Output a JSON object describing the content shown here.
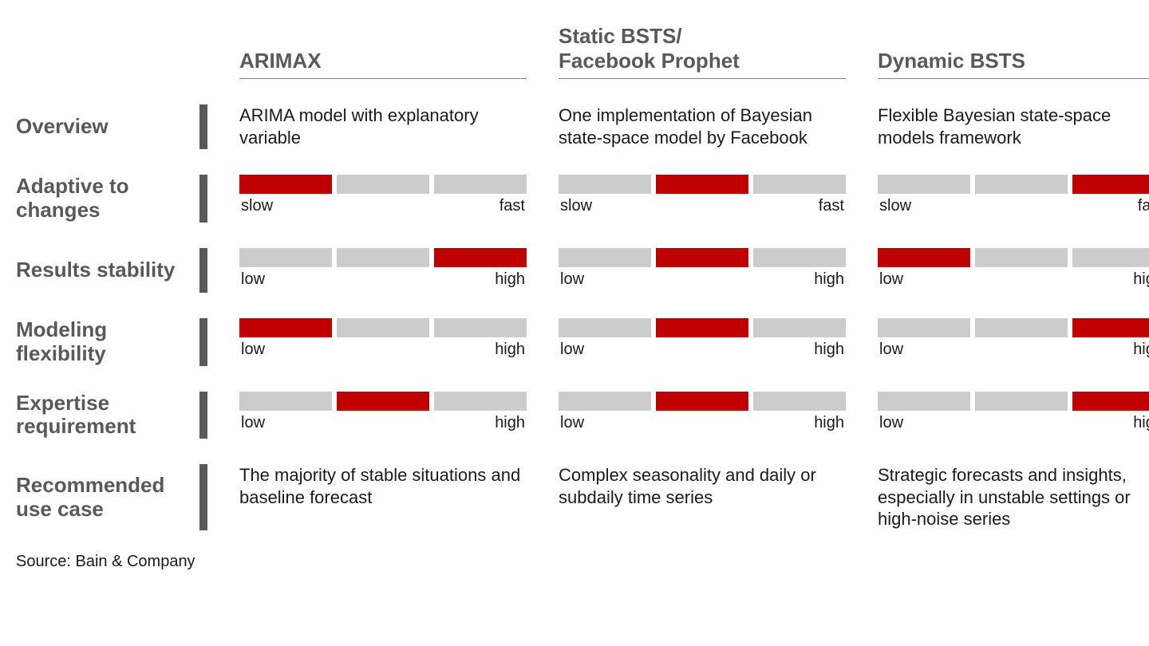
{
  "colors": {
    "active": "#c00000",
    "inactive": "#cccccc",
    "label": "#595959",
    "text": "#1a1a1a",
    "background": "#ffffff"
  },
  "segments": 3,
  "columns": [
    {
      "title": "ARIMAX"
    },
    {
      "title": "Static BSTS/\nFacebook Prophet"
    },
    {
      "title": "Dynamic BSTS"
    }
  ],
  "row_labels": {
    "overview": "Overview",
    "adaptive": "Adaptive to changes",
    "stability": "Results stability",
    "flexibility": "Modeling flexibility",
    "expertise": "Expertise requirement",
    "usecase": "Recommended use case"
  },
  "rows": {
    "overview": [
      "ARIMA model with explanatory variable",
      "One implementation of Bayesian state-space model by Facebook",
      "Flexible Bayesian state-space models framework"
    ],
    "adaptive": {
      "low": "slow",
      "high": "fast",
      "vals": [
        1,
        2,
        3
      ]
    },
    "stability": {
      "low": "low",
      "high": "high",
      "vals": [
        3,
        2,
        1
      ]
    },
    "flexibility": {
      "low": "low",
      "high": "high",
      "vals": [
        1,
        2,
        3
      ]
    },
    "expertise": {
      "low": "low",
      "high": "high",
      "vals": [
        2,
        2,
        3
      ]
    },
    "usecase": [
      "The majority of stable situations and baseline forecast",
      "Complex seasonality and daily or subdaily time series",
      "Strategic forecasts and insights, especially in unstable settings or high-noise series"
    ]
  },
  "source": "Source: Bain & Company"
}
